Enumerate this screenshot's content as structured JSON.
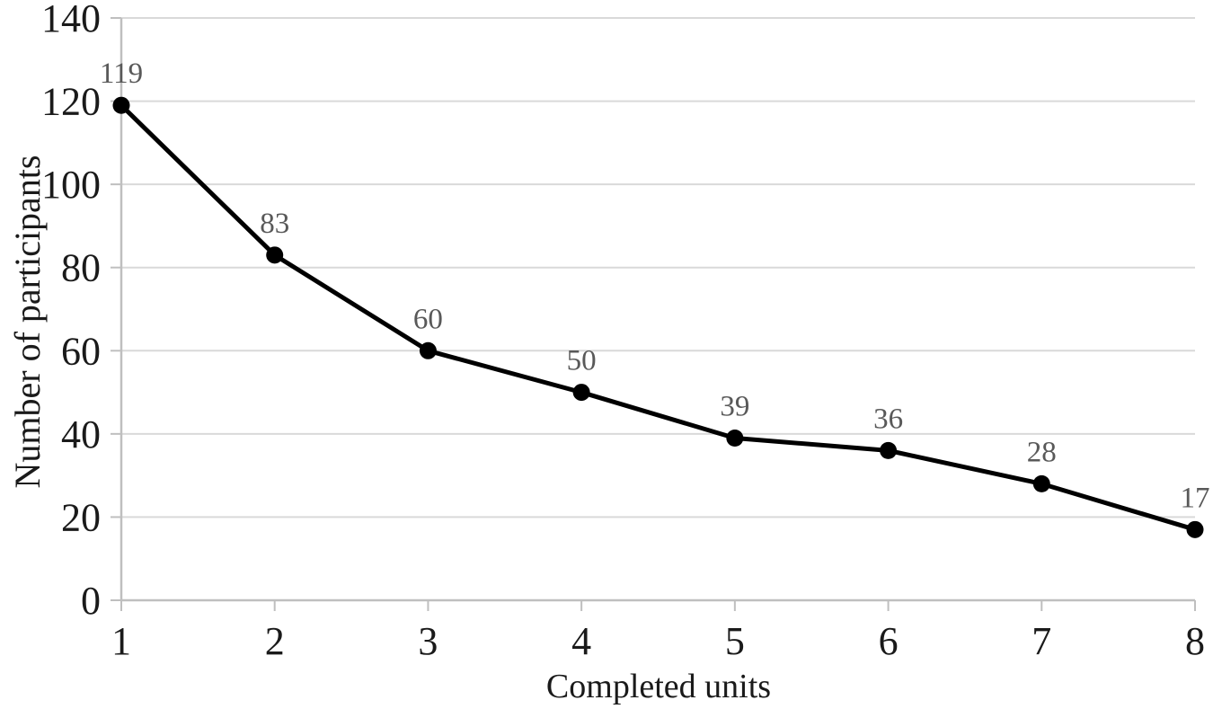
{
  "chart_data": {
    "type": "line",
    "title": "",
    "xlabel": "Completed units",
    "ylabel": "Number of participants",
    "categories": [
      "1",
      "2",
      "3",
      "4",
      "5",
      "6",
      "7",
      "8"
    ],
    "series": [
      {
        "name": "Number of participants",
        "values": [
          119,
          83,
          60,
          50,
          39,
          36,
          28,
          17
        ],
        "data_labels": [
          "119",
          "83",
          "60",
          "50",
          "39",
          "36",
          "28",
          "17"
        ]
      }
    ],
    "ylim": [
      0,
      140
    ],
    "ytick_step": 20,
    "ytick_labels": [
      "0",
      "20",
      "40",
      "60",
      "80",
      "100",
      "120",
      "140"
    ],
    "grid": "horizontal",
    "legend": false,
    "markers": "filled-circle",
    "colors": {
      "line": "#000000",
      "marker": "#000000",
      "data_label": "#595959",
      "gridline": "#d9d9d9",
      "axis": "#bfbfbf",
      "tick_label": "#1a1a1a",
      "axis_title": "#1a1a1a",
      "background": "#ffffff"
    }
  }
}
